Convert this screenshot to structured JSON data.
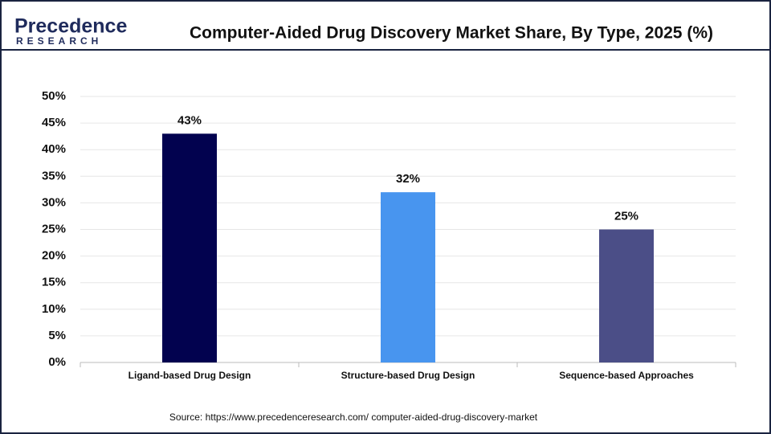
{
  "logo": {
    "name": "Precedence",
    "tagline": "RESEARCH"
  },
  "chart_data": {
    "type": "bar",
    "title": "Computer-Aided Drug Discovery Market Share, By Type, 2025 (%)",
    "categories": [
      "Ligand-based Drug Design",
      "Structure-based Drug Design",
      "Sequence-based Approaches"
    ],
    "values": [
      43,
      32,
      25
    ],
    "value_labels": [
      "43%",
      "32%",
      "25%"
    ],
    "colors": [
      "#02024f",
      "#4895ef",
      "#4b4e87"
    ],
    "ylim": [
      0,
      50
    ],
    "yticks": [
      {
        "value": 0,
        "label": "0%"
      },
      {
        "value": 5,
        "label": "5%"
      },
      {
        "value": 10,
        "label": "10%"
      },
      {
        "value": 15,
        "label": "15%"
      },
      {
        "value": 20,
        "label": "20%"
      },
      {
        "value": 25,
        "label": "25%"
      },
      {
        "value": 30,
        "label": "30%"
      },
      {
        "value": 35,
        "label": "35%"
      },
      {
        "value": 40,
        "label": "40%"
      },
      {
        "value": 45,
        "label": "45%"
      },
      {
        "value": 50,
        "label": "50%"
      }
    ],
    "grid": true,
    "source": "Source: https://www.precedenceresearch.com/ computer-aided-drug-discovery-market"
  }
}
